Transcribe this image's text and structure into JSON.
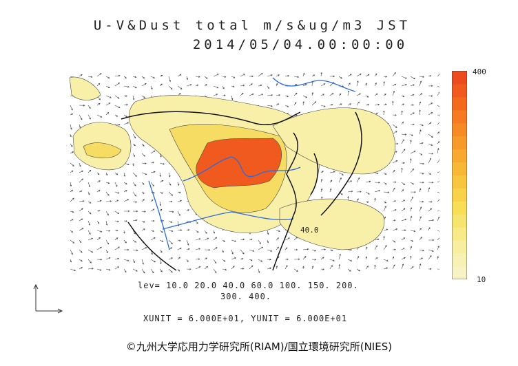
{
  "title": {
    "line1": "U-V&Dust total m/s&ug/m3 JST",
    "line2": "2014/05/04.00:00:00"
  },
  "colorbar": {
    "max_label": "400",
    "min_label": "10",
    "colors": [
      "#f7f3c4",
      "#f7f1b3",
      "#f7ee9f",
      "#f7ea87",
      "#f7e46f",
      "#f8dd57",
      "#f8d249",
      "#f8c63e",
      "#f8b835",
      "#f8a92e",
      "#f79a29",
      "#f68a24",
      "#f57a21",
      "#f36a1f",
      "#f05a1e",
      "#ec4c1d"
    ]
  },
  "levels": {
    "line1": "lev= 10.0 20.0 40.0 60.0 100. 150. 200.",
    "line2": "300. 400."
  },
  "contour_label": "40.0",
  "units": "XUNIT = 6.000E+01, YUNIT = 6.000E+01",
  "copyright": "©九州大学応用力学研究所(RIAM)/国立環境研究所(NIES)",
  "map_colors": {
    "river": "#2a6ae0",
    "coast": "#111111",
    "border": "#111111",
    "low": "#f8f0a8",
    "mid": "#f6dc63",
    "high": "#f05a1e"
  }
}
